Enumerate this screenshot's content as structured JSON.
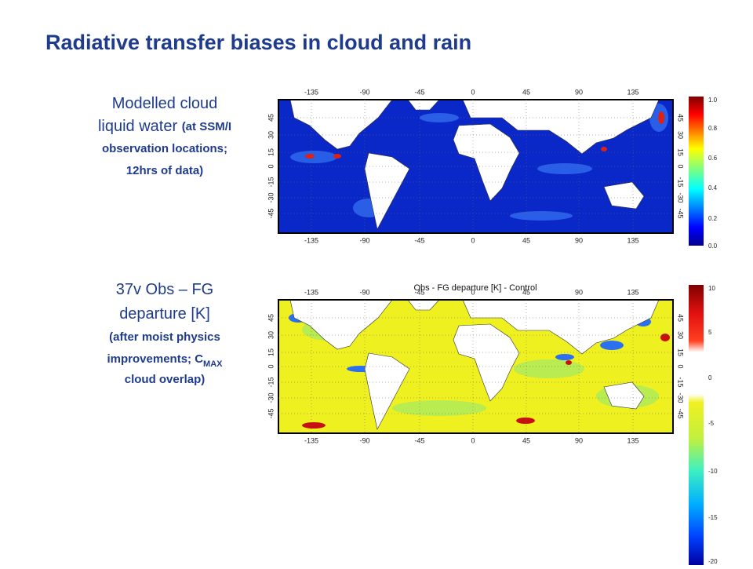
{
  "title": "Radiative transfer biases in cloud and rain",
  "panels": [
    {
      "caption": [
        [
          {
            "text": "Modelled cloud",
            "size": "large"
          }
        ],
        [
          {
            "text": "liquid water ",
            "size": "large"
          },
          {
            "text": "(at SSM/I",
            "size": "small"
          }
        ],
        [
          {
            "text": "observation locations;",
            "size": "small"
          }
        ],
        [
          {
            "text": "12hrs of data)",
            "size": "small"
          }
        ]
      ],
      "lon_ticks": [
        "-135",
        "-90",
        "-45",
        "0",
        "45",
        "90",
        "135"
      ],
      "lat_ticks": [
        "45",
        "30",
        "15",
        "0",
        "-15",
        "-30",
        "-45"
      ],
      "colorbar": [
        "1.0",
        "0.8",
        "0.6",
        "0.4",
        "0.2",
        "0.0"
      ]
    },
    {
      "map_title": "Obs - FG departure [K] - Control",
      "caption": [
        [
          {
            "text": "37v Obs – FG",
            "size": "large"
          }
        ],
        [
          {
            "text": "departure [K]",
            "size": "large"
          }
        ],
        [
          {
            "text": "(after moist physics",
            "size": "small"
          }
        ],
        [
          {
            "text": "improvements; C",
            "size": "small"
          },
          {
            "text": "MAX",
            "size": "sub"
          }
        ],
        [
          {
            "text": "cloud overlap)",
            "size": "small"
          }
        ]
      ],
      "lon_ticks": [
        "-135",
        "-90",
        "-45",
        "0",
        "45",
        "90",
        "135"
      ],
      "lat_ticks": [
        "45",
        "30",
        "15",
        "0",
        "-15",
        "-30",
        "-45"
      ],
      "colorbar": [
        "10",
        "5",
        "0",
        "-5",
        "-10",
        "-15",
        "-20"
      ]
    }
  ]
}
